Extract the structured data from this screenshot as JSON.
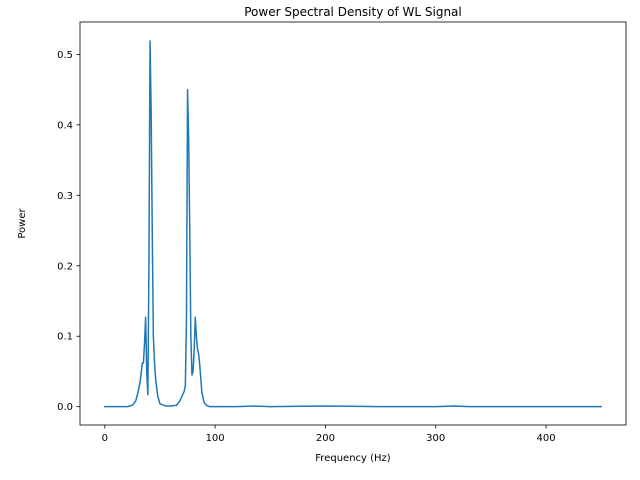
{
  "chart_data": {
    "type": "line",
    "title": "Power Spectral Density of WL Signal",
    "xlabel": "Frequency (Hz)",
    "ylabel": "Power",
    "xlim": [
      -22.5,
      472.5
    ],
    "ylim": [
      -0.026,
      0.546
    ],
    "xticks": [
      0,
      100,
      200,
      300,
      400
    ],
    "yticks": [
      0.0,
      0.1,
      0.2,
      0.3,
      0.4,
      0.5
    ],
    "xtick_labels": [
      "0",
      "100",
      "200",
      "300",
      "400"
    ],
    "ytick_labels": [
      "0.0",
      "0.1",
      "0.2",
      "0.3",
      "0.4",
      "0.5"
    ],
    "grid": false,
    "line_color": "#1f77b4",
    "series": [
      {
        "x": [
          0,
          10,
          20,
          25,
          28,
          30,
          32,
          34,
          35,
          36,
          37,
          38,
          39,
          40,
          41,
          42,
          43,
          44,
          45,
          46,
          48,
          50,
          55,
          60,
          65,
          68,
          70,
          72,
          73,
          74,
          75,
          76,
          77,
          78,
          79,
          80,
          81,
          82,
          83,
          84,
          85,
          86,
          87,
          88,
          90,
          92,
          95,
          100,
          110,
          120,
          135,
          150,
          200,
          250,
          300,
          317,
          330,
          350,
          400,
          420,
          450
        ],
        "y": [
          0.0,
          0.0,
          0.0,
          0.002,
          0.008,
          0.02,
          0.035,
          0.062,
          0.062,
          0.09,
          0.127,
          0.05,
          0.017,
          0.2,
          0.519,
          0.42,
          0.25,
          0.1,
          0.065,
          0.04,
          0.015,
          0.004,
          0.001,
          0.001,
          0.002,
          0.008,
          0.015,
          0.022,
          0.03,
          0.12,
          0.45,
          0.38,
          0.25,
          0.1,
          0.045,
          0.05,
          0.08,
          0.127,
          0.1,
          0.082,
          0.075,
          0.06,
          0.04,
          0.02,
          0.006,
          0.002,
          0.0,
          0.0,
          0.0,
          0.0,
          0.001,
          0.0,
          0.001,
          0.0,
          0.0,
          0.001,
          0.0,
          0.0,
          0.0,
          0.0,
          0.0
        ]
      }
    ]
  }
}
